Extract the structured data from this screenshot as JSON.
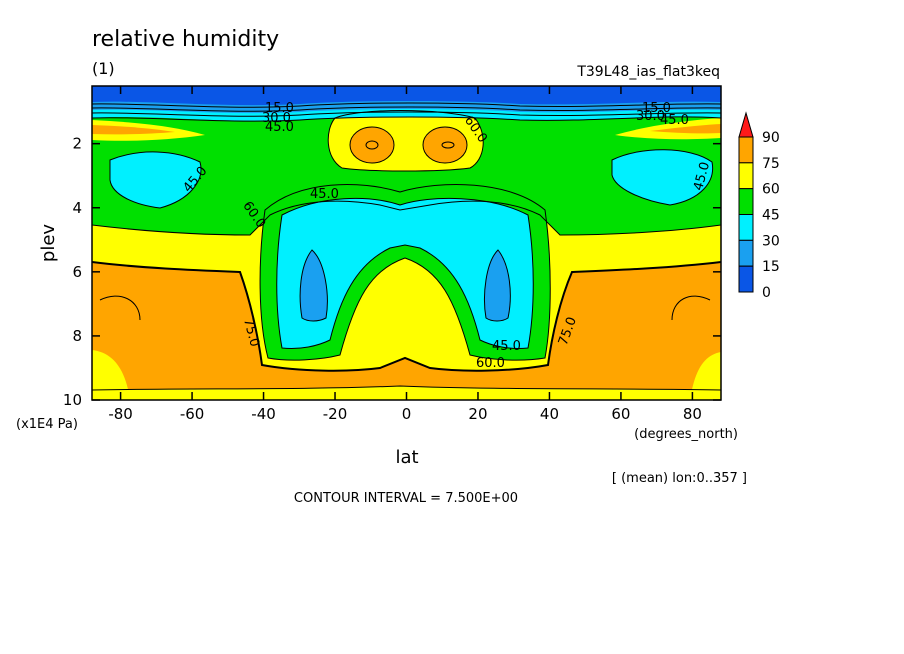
{
  "title": "relative humidity",
  "subtitle": "(1)",
  "run_name": "T39L48_ias_flat3keq",
  "contour_interval_text": "CONTOUR INTERVAL = 7.500E+00",
  "mean_info": "[ (mean) lon:0..357 ]",
  "chart_data": {
    "type": "heatmap",
    "xlabel": "lat",
    "xunits": "(degrees_north)",
    "ylabel": "plev",
    "yunits": "(x1E4 Pa)",
    "xlim": [
      -88,
      88
    ],
    "ylim": [
      10,
      0.2
    ],
    "x_ticks": [
      -80,
      -60,
      -40,
      -20,
      0,
      20,
      40,
      60,
      80
    ],
    "y_ticks": [
      2,
      4,
      6,
      8,
      10
    ],
    "contour_levels": [
      0,
      15,
      30,
      45,
      60,
      75,
      90
    ],
    "colorbar_labels": [
      "90",
      "75",
      "60",
      "45",
      "30",
      "15",
      "0"
    ],
    "colors": {
      "0-15": "#0a56e6",
      "15-30": "#1aa0f0",
      "30-45": "#00f0ff",
      "45-60": "#00e000",
      "60-75": "#ffff00",
      "75-90": "#ffa500",
      "over_90": "#ff1a1a"
    },
    "contour_labels": [
      "15.0",
      "30.0",
      "45.0",
      "60.0",
      "45.0",
      "45.0",
      "60.0",
      "45.0",
      "75.0",
      "45.0",
      "60.0",
      "75.0",
      "15.0",
      "30.0",
      "45.0"
    ]
  }
}
